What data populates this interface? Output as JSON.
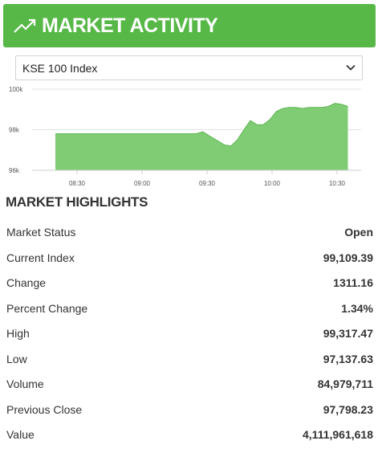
{
  "header": {
    "title": "MARKET ACTIVITY",
    "icon": "trend-up-icon",
    "background": "#57b847"
  },
  "index_select": {
    "selected": "KSE 100 Index"
  },
  "chart_data": {
    "type": "area",
    "color": "#7fcc74",
    "y_ticks": [
      "100k",
      "98k",
      "96k"
    ],
    "ylim": [
      96000,
      100000
    ],
    "x_ticks": [
      "08:30",
      "09:00",
      "09:30",
      "10:00",
      "10:30"
    ],
    "x": [
      "08:20",
      "08:50",
      "09:25",
      "09:28",
      "09:31",
      "09:35",
      "09:38",
      "09:41",
      "09:44",
      "09:47",
      "09:50",
      "09:53",
      "09:56",
      "09:59",
      "10:02",
      "10:05",
      "10:08",
      "10:11",
      "10:14",
      "10:17",
      "10:20",
      "10:23",
      "10:26",
      "10:29",
      "10:32",
      "10:35"
    ],
    "values": [
      97800,
      97800,
      97800,
      97900,
      97700,
      97450,
      97250,
      97200,
      97500,
      98000,
      98450,
      98250,
      98250,
      98500,
      98900,
      99050,
      99100,
      99100,
      99050,
      99100,
      99100,
      99100,
      99150,
      99300,
      99250,
      99150
    ],
    "grid": true
  },
  "highlights": {
    "title": "MARKET HIGHLIGHTS",
    "rows": [
      {
        "label": "Market Status",
        "value": "Open"
      },
      {
        "label": "Current Index",
        "value": "99,109.39"
      },
      {
        "label": "Change",
        "value": "1311.16"
      },
      {
        "label": "Percent Change",
        "value": "1.34%"
      },
      {
        "label": "High",
        "value": "99,317.47"
      },
      {
        "label": "Low",
        "value": "97,137.63"
      },
      {
        "label": "Volume",
        "value": "84,979,711"
      },
      {
        "label": "Previous Close",
        "value": "97,798.23"
      },
      {
        "label": "Value",
        "value": "4,111,961,618"
      }
    ]
  }
}
